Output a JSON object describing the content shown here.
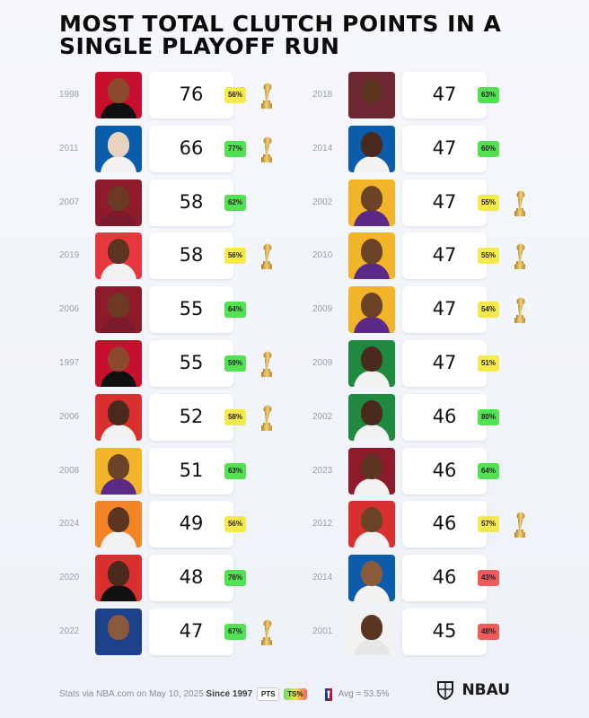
{
  "title_lines": [
    "MOST TOTAL CLUTCH POINTS IN A",
    "SINGLE PLAYOFF RUN"
  ],
  "ts_colors": {
    "green": "#53e053",
    "yellow": "#f5e94e",
    "red": "#ef5a5a"
  },
  "chart_data": {
    "type": "table",
    "columns": [
      "year",
      "points",
      "ts_pct",
      "won_title"
    ],
    "left": [
      {
        "year": "1998",
        "pts": "76",
        "ts": "56%",
        "ts_color": "yellow",
        "trophy": true,
        "team_colors": [
          "#c8102e",
          "#8a4a2b",
          "#111111"
        ]
      },
      {
        "year": "2011",
        "pts": "66",
        "ts": "77%",
        "ts_color": "green",
        "trophy": true,
        "team_colors": [
          "#0b5cab",
          "#e8d3bf",
          "#f2f2f2"
        ]
      },
      {
        "year": "2007",
        "pts": "58",
        "ts": "62%",
        "ts_color": "green",
        "trophy": false,
        "team_colors": [
          "#8e1b2b",
          "#6b3a22",
          "#7a1a2a"
        ]
      },
      {
        "year": "2019",
        "pts": "58",
        "ts": "56%",
        "ts_color": "yellow",
        "trophy": true,
        "team_colors": [
          "#e8383d",
          "#5b3521",
          "#f2f2f2"
        ]
      },
      {
        "year": "2006",
        "pts": "55",
        "ts": "64%",
        "ts_color": "green",
        "trophy": false,
        "team_colors": [
          "#8e1b2b",
          "#6b3a22",
          "#7a1a2a"
        ]
      },
      {
        "year": "1997",
        "pts": "55",
        "ts": "59%",
        "ts_color": "green",
        "trophy": true,
        "team_colors": [
          "#c8102e",
          "#8a4a2b",
          "#111111"
        ]
      },
      {
        "year": "2006",
        "pts": "52",
        "ts": "58%",
        "ts_color": "yellow",
        "trophy": true,
        "team_colors": [
          "#d9302f",
          "#4a2a1c",
          "#f2f2f2"
        ]
      },
      {
        "year": "2008",
        "pts": "51",
        "ts": "63%",
        "ts_color": "green",
        "trophy": false,
        "team_colors": [
          "#f2b52a",
          "#6b4428",
          "#5b2a86"
        ]
      },
      {
        "year": "2024",
        "pts": "49",
        "ts": "56%",
        "ts_color": "yellow",
        "trophy": false,
        "team_colors": [
          "#f58426",
          "#5b3521",
          "#f2f2f2"
        ]
      },
      {
        "year": "2020",
        "pts": "48",
        "ts": "76%",
        "ts_color": "green",
        "trophy": false,
        "team_colors": [
          "#d9302f",
          "#4a2a1c",
          "#111111"
        ]
      },
      {
        "year": "2022",
        "pts": "47",
        "ts": "67%",
        "ts_color": "green",
        "trophy": true,
        "team_colors": [
          "#1d428a",
          "#8a5a3a",
          "#1d428a"
        ]
      }
    ],
    "right": [
      {
        "year": "2018",
        "pts": "47",
        "ts": "63%",
        "ts_color": "green",
        "trophy": false,
        "team_colors": [
          "#6f2633",
          "#5b3521",
          "#6f2633"
        ]
      },
      {
        "year": "2014",
        "pts": "47",
        "ts": "60%",
        "ts_color": "green",
        "trophy": false,
        "team_colors": [
          "#0b5cab",
          "#4a2a1c",
          "#f2f2f2"
        ]
      },
      {
        "year": "2002",
        "pts": "47",
        "ts": "55%",
        "ts_color": "yellow",
        "trophy": true,
        "team_colors": [
          "#f2b52a",
          "#6b4428",
          "#5b2a86"
        ]
      },
      {
        "year": "2010",
        "pts": "47",
        "ts": "55%",
        "ts_color": "yellow",
        "trophy": true,
        "team_colors": [
          "#f2b52a",
          "#6b4428",
          "#5b2a86"
        ]
      },
      {
        "year": "2009",
        "pts": "47",
        "ts": "54%",
        "ts_color": "yellow",
        "trophy": true,
        "team_colors": [
          "#f2b52a",
          "#6b4428",
          "#5b2a86"
        ]
      },
      {
        "year": "2009",
        "pts": "47",
        "ts": "51%",
        "ts_color": "yellow",
        "trophy": false,
        "team_colors": [
          "#1f8a3f",
          "#4a2a1c",
          "#f2f2f2"
        ]
      },
      {
        "year": "2002",
        "pts": "46",
        "ts": "80%",
        "ts_color": "green",
        "trophy": false,
        "team_colors": [
          "#1f8a3f",
          "#4a2a1c",
          "#f2f2f2"
        ]
      },
      {
        "year": "2023",
        "pts": "46",
        "ts": "64%",
        "ts_color": "green",
        "trophy": false,
        "team_colors": [
          "#8e1b2b",
          "#5b3521",
          "#f2f2f2"
        ]
      },
      {
        "year": "2012",
        "pts": "46",
        "ts": "57%",
        "ts_color": "yellow",
        "trophy": true,
        "team_colors": [
          "#d9302f",
          "#6b4428",
          "#f2f2f2"
        ]
      },
      {
        "year": "2014",
        "pts": "46",
        "ts": "43%",
        "ts_color": "red",
        "trophy": false,
        "team_colors": [
          "#0b5cab",
          "#8a5a3a",
          "#f2f2f2"
        ]
      },
      {
        "year": "2001",
        "pts": "45",
        "ts": "48%",
        "ts_color": "red",
        "trophy": false,
        "team_colors": [
          "#f2f2f2",
          "#5b3521",
          "#e6e6e6"
        ]
      }
    ]
  },
  "footer": {
    "source_prefix": "Stats via NBA.com on May 10, 2025",
    "since": "Since 1997",
    "pts_key": "PTS",
    "ts_key": "TS%",
    "avg": "Avg = 53.5%"
  },
  "brand": {
    "name": "NBAU"
  },
  "icons": {
    "trophy": "trophy-icon",
    "nba": "nba-logo-icon",
    "brand": "shield-icon"
  }
}
